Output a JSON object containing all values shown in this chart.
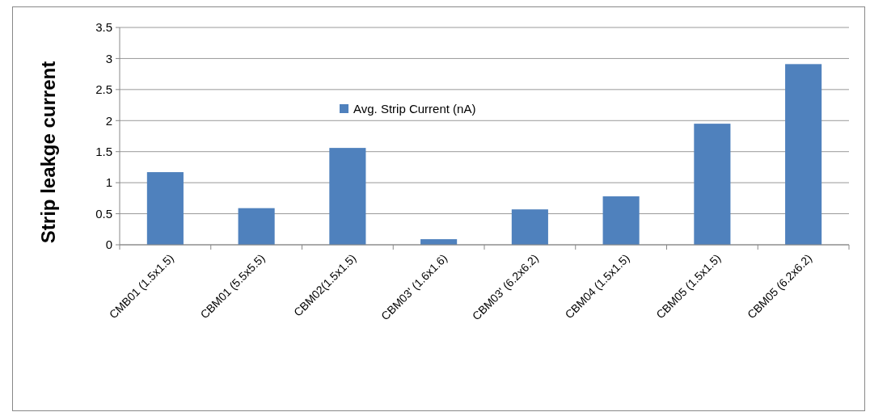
{
  "chart_data": {
    "type": "bar",
    "ylabel": "Strip leakge current",
    "categories": [
      "CMB01 (1.5x1.5)",
      "CBM01 (5.5x5.5)",
      "CBM02(1.5x1.5)",
      "CBM03' (1.6x1.6)",
      "CBM03' (6.2x6.2)",
      "CBM04 (1.5x1.5)",
      "CBM05 (1.5x1.5)",
      "CBM05 (6.2x6.2)"
    ],
    "series": [
      {
        "name": "Avg. Strip Current (nA)",
        "color": "#4f81bd",
        "values": [
          1.17,
          0.59,
          1.56,
          0.09,
          0.57,
          0.78,
          1.95,
          2.91
        ]
      }
    ],
    "ylim": [
      0,
      3.5
    ],
    "yticks": [
      0,
      0.5,
      1,
      1.5,
      2,
      2.5,
      3,
      3.5
    ],
    "grid": "y",
    "legend": "top"
  }
}
